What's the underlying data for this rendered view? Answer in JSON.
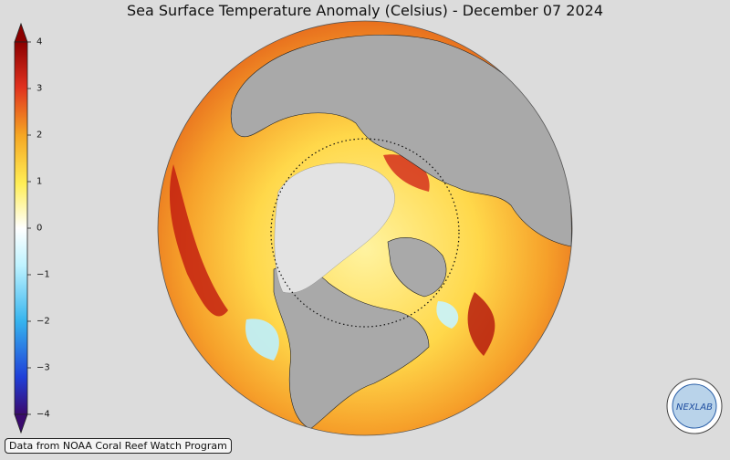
{
  "title": "Sea Surface Temperature Anomaly (Celsius) - December 07 2024",
  "credit": "Data from NOAA Coral Reef Watch Program",
  "logo": {
    "text": "NEXLAB",
    "icon": "nexlab-logo"
  },
  "colorbar": {
    "min": -4,
    "max": 4,
    "ticks": [
      {
        "value": 4,
        "label": "4"
      },
      {
        "value": 3,
        "label": "3"
      },
      {
        "value": 2,
        "label": "2"
      },
      {
        "value": 1,
        "label": "1"
      },
      {
        "value": 0,
        "label": "0"
      },
      {
        "value": -1,
        "label": "−1"
      },
      {
        "value": -2,
        "label": "−2"
      },
      {
        "value": -3,
        "label": "−3"
      },
      {
        "value": -4,
        "label": "−4"
      }
    ],
    "colors": [
      "#3a0a6e",
      "#1f3fd8",
      "#36b4ee",
      "#bff3ff",
      "#ffffff",
      "#ffee55",
      "#f5a623",
      "#e0301e",
      "#8b0000"
    ]
  },
  "colors": {
    "land": "#a9a9a9",
    "sea_ice": "#e3e3e3",
    "background": "#dcdcdc"
  }
}
